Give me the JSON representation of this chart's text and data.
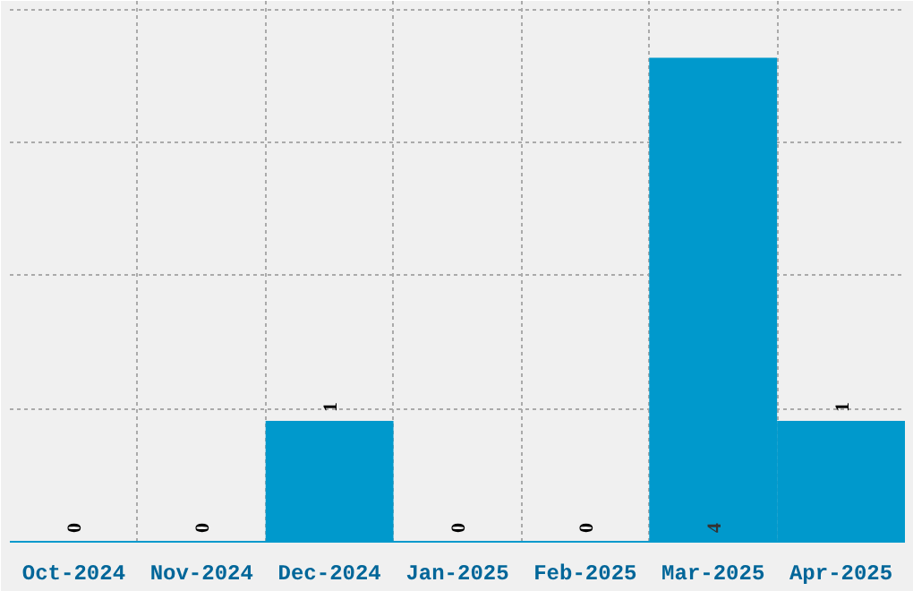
{
  "chart_data": {
    "type": "bar",
    "categories": [
      "Oct-2024",
      "Nov-2024",
      "Dec-2024",
      "Jan-2025",
      "Feb-2025",
      "Mar-2025",
      "Apr-2025"
    ],
    "values": [
      0,
      0,
      1,
      0,
      0,
      4,
      1
    ],
    "color": "#0099cc",
    "ylim": [
      0,
      4.47
    ],
    "yticks": [
      {
        "value": 1.1,
        "label": null
      },
      {
        "value": 2.2,
        "label": null
      },
      {
        "value": 3.3,
        "label": null
      },
      {
        "value": 4.4,
        "label": null
      }
    ],
    "tick_labels": "x",
    "grid": true,
    "data_labels": true
  }
}
